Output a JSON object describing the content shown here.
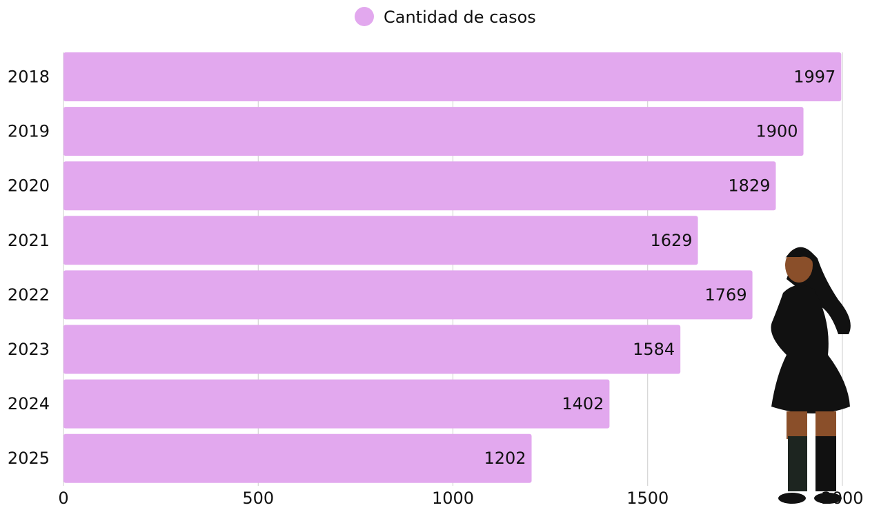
{
  "chart_data": {
    "type": "bar",
    "orientation": "horizontal",
    "categories": [
      "2018",
      "2019",
      "2020",
      "2021",
      "2022",
      "2023",
      "2024",
      "2025"
    ],
    "series": [
      {
        "name": "Cantidad de casos",
        "color": "#e2a8ee",
        "values": [
          1997,
          1900,
          1829,
          1629,
          1769,
          1584,
          1402,
          1202
        ]
      }
    ],
    "xlim": [
      0,
      2000
    ],
    "xticks": [
      0,
      500,
      1000,
      1500,
      2000
    ],
    "grid": true,
    "legend": "top"
  }
}
